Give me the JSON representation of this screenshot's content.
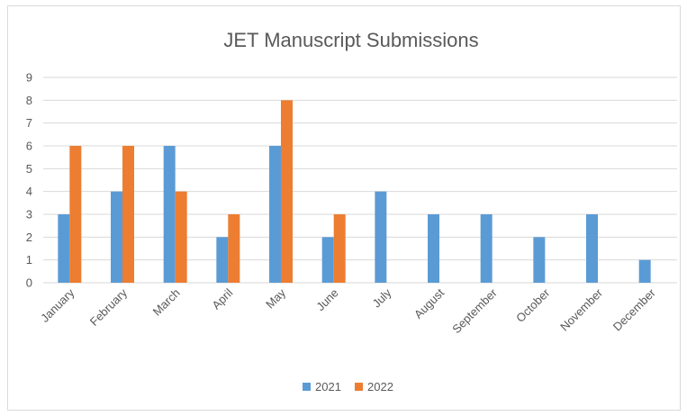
{
  "chart_data": {
    "type": "bar",
    "title": "JET Manuscript Submissions",
    "categories": [
      "January",
      "February",
      "March",
      "April",
      "May",
      "June",
      "July",
      "August",
      "September",
      "October",
      "November",
      "December"
    ],
    "series": [
      {
        "name": "2021",
        "color": "#5b9bd5",
        "values": [
          3,
          4,
          6,
          2,
          6,
          2,
          4,
          3,
          3,
          2,
          3,
          1
        ]
      },
      {
        "name": "2022",
        "color": "#ed7d31",
        "values": [
          6,
          6,
          4,
          3,
          8,
          3,
          null,
          null,
          null,
          null,
          null,
          null
        ]
      }
    ],
    "ylim": [
      0,
      9
    ],
    "yticks": [
      0,
      1,
      2,
      3,
      4,
      5,
      6,
      7,
      8,
      9
    ],
    "grid": true,
    "legend": "bottom"
  }
}
